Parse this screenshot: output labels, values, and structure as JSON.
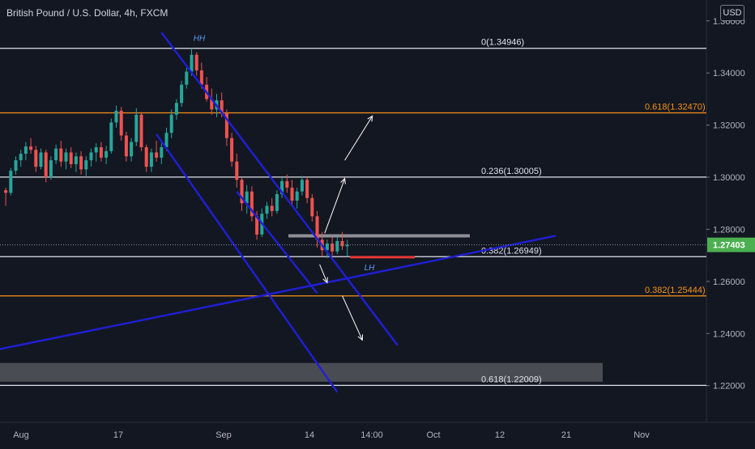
{
  "header": {
    "title": "British Pound / U.S. Dollar, 4h, FXCM",
    "currency_button": "USD"
  },
  "colors": {
    "background": "#131722",
    "up": "#26a69a",
    "down": "#ef5350",
    "channel": "#1f1fd6",
    "fib_white": "#e0e3eb",
    "fib_orange": "#f7931a",
    "price_badge": "#4caf50",
    "zone": "#5d5f66"
  },
  "chart_data": {
    "type": "candlestick",
    "symbol": "GBPUSD",
    "timeframe": "4h",
    "ylim": [
      1.205,
      1.368
    ],
    "y_ticks": [
      "1.36000",
      "1.34000",
      "1.32000",
      "1.30000",
      "1.28000",
      "1.26000",
      "1.24000",
      "1.22000"
    ],
    "x_ticks": [
      "Aug",
      "17",
      "Sep",
      "14",
      "14:00",
      "Oct",
      "12",
      "21",
      "Nov"
    ],
    "last_price": "1.27403",
    "fib_levels": [
      {
        "label": "0(1.34946)",
        "value": 1.34946,
        "color": "white"
      },
      {
        "label": "0.236(1.30005)",
        "value": 1.30005,
        "color": "white"
      },
      {
        "label": "0.382(1.26949)",
        "value": 1.26949,
        "color": "white"
      },
      {
        "label": "0.618(1.22009)",
        "value": 1.22009,
        "color": "white"
      },
      {
        "label": "0.618(1.32470)",
        "value": 1.3247,
        "color": "orange"
      },
      {
        "label": "0.382(1.25444)",
        "value": 1.25444,
        "color": "orange"
      }
    ],
    "annotations": [
      {
        "text": "HH",
        "near_value": 1.3535
      },
      {
        "text": "LH",
        "near_value": 1.2655
      }
    ],
    "zones": [
      {
        "name": "support",
        "from": 1.2215,
        "to": 1.2287
      },
      {
        "name": "resistance-line",
        "value": 1.2775
      },
      {
        "name": "lower-high-line",
        "value": 1.2693
      }
    ],
    "trendlines": [
      {
        "name": "rising",
        "from": [
          -2,
          1.2335
        ],
        "to": [
          110,
          1.2775
        ]
      },
      {
        "name": "channel-upper",
        "from": [
          31.5,
          1.3555
        ],
        "to": [
          78.5,
          1.2355
        ]
      },
      {
        "name": "channel-lower",
        "from": [
          30.5,
          1.3165
        ],
        "to": [
          66.5,
          1.2175
        ]
      },
      {
        "name": "channel-mid",
        "from": [
          46.5,
          1.2945
        ],
        "to": [
          62.5,
          1.2555
        ]
      }
    ],
    "projections": [
      {
        "from": [
          64,
          1.2785
        ],
        "to": [
          68,
          1.2995
        ]
      },
      {
        "from": [
          68,
          1.3065
        ],
        "to": [
          73.5,
          1.3235
        ]
      },
      {
        "from": [
          63,
          1.2665
        ],
        "to": [
          64.5,
          1.2595
        ]
      },
      {
        "from": [
          67.5,
          1.2545
        ],
        "to": [
          71.5,
          1.2375
        ]
      }
    ],
    "candles": [
      [
        1.295,
        1.296,
        1.289,
        1.294
      ],
      [
        1.294,
        1.3035,
        1.293,
        1.3025
      ],
      [
        1.3025,
        1.308,
        1.301,
        1.3065
      ],
      [
        1.3065,
        1.3105,
        1.304,
        1.309
      ],
      [
        1.309,
        1.3135,
        1.3065,
        1.3118
      ],
      [
        1.3118,
        1.315,
        1.309,
        1.3105
      ],
      [
        1.3105,
        1.312,
        1.302,
        1.304
      ],
      [
        1.304,
        1.311,
        1.303,
        1.3095
      ],
      [
        1.3095,
        1.3105,
        1.298,
        1.3
      ],
      [
        1.3,
        1.308,
        1.299,
        1.3065
      ],
      [
        1.3065,
        1.3125,
        1.305,
        1.311
      ],
      [
        1.311,
        1.314,
        1.304,
        1.306
      ],
      [
        1.306,
        1.311,
        1.303,
        1.3095
      ],
      [
        1.3095,
        1.3115,
        1.3035,
        1.305
      ],
      [
        1.305,
        1.3095,
        1.302,
        1.308
      ],
      [
        1.308,
        1.31,
        1.301,
        1.303
      ],
      [
        1.303,
        1.308,
        1.3,
        1.3065
      ],
      [
        1.3065,
        1.311,
        1.304,
        1.3095
      ],
      [
        1.3095,
        1.313,
        1.306,
        1.3115
      ],
      [
        1.3115,
        1.3135,
        1.306,
        1.3075
      ],
      [
        1.3075,
        1.312,
        1.305,
        1.31
      ],
      [
        1.31,
        1.3225,
        1.309,
        1.321
      ],
      [
        1.321,
        1.3275,
        1.319,
        1.3255
      ],
      [
        1.3255,
        1.327,
        1.314,
        1.316
      ],
      [
        1.316,
        1.3175,
        1.306,
        1.308
      ],
      [
        1.308,
        1.315,
        1.306,
        1.3135
      ],
      [
        1.3135,
        1.3265,
        1.312,
        1.324
      ],
      [
        1.324,
        1.325,
        1.31,
        1.3115
      ],
      [
        1.3115,
        1.3125,
        1.302,
        1.304
      ],
      [
        1.304,
        1.311,
        1.302,
        1.3095
      ],
      [
        1.3095,
        1.314,
        1.306,
        1.3075
      ],
      [
        1.3075,
        1.313,
        1.305,
        1.3115
      ],
      [
        1.3115,
        1.319,
        1.31,
        1.317
      ],
      [
        1.317,
        1.326,
        1.315,
        1.324
      ],
      [
        1.324,
        1.33,
        1.322,
        1.3285
      ],
      [
        1.3285,
        1.337,
        1.327,
        1.3355
      ],
      [
        1.3355,
        1.342,
        1.334,
        1.3405
      ],
      [
        1.3405,
        1.3495,
        1.339,
        1.347
      ],
      [
        1.347,
        1.348,
        1.339,
        1.341
      ],
      [
        1.341,
        1.344,
        1.334,
        1.3355
      ],
      [
        1.3355,
        1.3385,
        1.329,
        1.33
      ],
      [
        1.33,
        1.334,
        1.324,
        1.326
      ],
      [
        1.326,
        1.332,
        1.323,
        1.3295
      ],
      [
        1.3295,
        1.3325,
        1.323,
        1.3245
      ],
      [
        1.3245,
        1.326,
        1.312,
        1.315
      ],
      [
        1.315,
        1.317,
        1.304,
        1.306
      ],
      [
        1.306,
        1.309,
        1.296,
        1.299
      ],
      [
        1.299,
        1.3,
        1.287,
        1.29
      ],
      [
        1.29,
        1.297,
        1.286,
        1.2945
      ],
      [
        1.2945,
        1.2965,
        1.283,
        1.285
      ],
      [
        1.285,
        1.287,
        1.276,
        1.278
      ],
      [
        1.278,
        1.288,
        1.277,
        1.286
      ],
      [
        1.286,
        1.2905,
        1.284,
        1.289
      ],
      [
        1.289,
        1.292,
        1.285,
        1.287
      ],
      [
        1.287,
        1.295,
        1.286,
        1.2935
      ],
      [
        1.2935,
        1.3,
        1.292,
        1.2985
      ],
      [
        1.2985,
        1.301,
        1.294,
        1.296
      ],
      [
        1.296,
        1.299,
        1.289,
        1.291
      ],
      [
        1.291,
        1.296,
        1.288,
        1.2945
      ],
      [
        1.2945,
        1.3005,
        1.293,
        1.299
      ],
      [
        1.299,
        1.3,
        1.29,
        1.292
      ],
      [
        1.292,
        1.2935,
        1.283,
        1.285
      ],
      [
        1.285,
        1.287,
        1.273,
        1.276
      ],
      [
        1.276,
        1.279,
        1.2695,
        1.272
      ],
      [
        1.272,
        1.276,
        1.269,
        1.2745
      ],
      [
        1.2745,
        1.277,
        1.27,
        1.2715
      ],
      [
        1.2715,
        1.277,
        1.2705,
        1.2755
      ],
      [
        1.2755,
        1.279,
        1.272,
        1.2735
      ],
      [
        1.2735,
        1.276,
        1.2695,
        1.274
      ]
    ]
  }
}
